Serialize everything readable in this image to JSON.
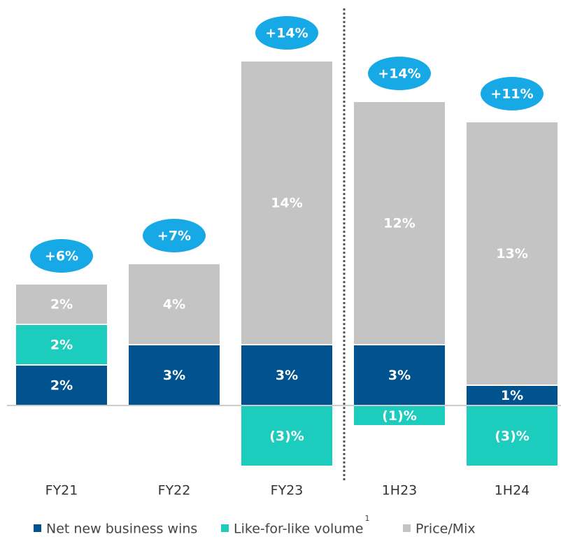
{
  "chart_data": {
    "type": "stacked_bar",
    "categories": [
      "FY21",
      "FY22",
      "FY23",
      "1H23",
      "1H24"
    ],
    "series": [
      {
        "name": "Net new business wins",
        "color": "#00538f",
        "values": [
          2,
          3,
          3,
          3,
          1
        ],
        "value_labels": [
          "2%",
          "3%",
          "3%",
          "3%",
          "1%"
        ]
      },
      {
        "name": "Like-for-like volume",
        "footnote_marker": "1",
        "color": "#1ccdbd",
        "values": [
          2,
          null,
          -3,
          -1,
          -3
        ],
        "value_labels": [
          "2%",
          null,
          "(3)%",
          "(1)%",
          "(3)%"
        ]
      },
      {
        "name": "Price/Mix",
        "color": "#c4c4c4",
        "values": [
          2,
          4,
          14,
          12,
          13
        ],
        "value_labels": [
          "2%",
          "4%",
          "14%",
          "12%",
          "13%"
        ]
      }
    ],
    "totals": [
      6,
      7,
      14,
      14,
      11
    ],
    "total_labels": [
      "+6%",
      "+7%",
      "+14%",
      "+14%",
      "+11%"
    ],
    "total_color": "#16a9e6"
  }
}
